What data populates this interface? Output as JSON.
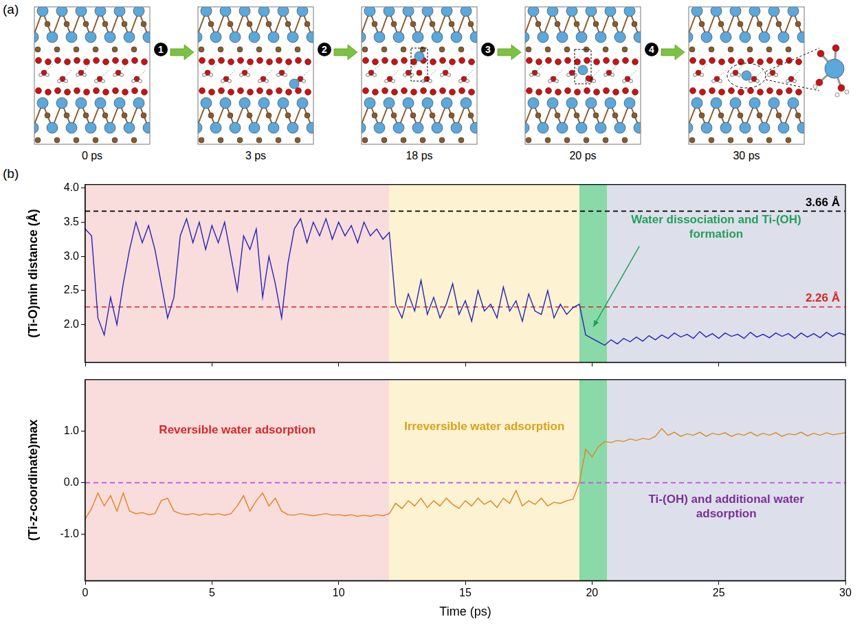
{
  "panel_a": {
    "label": "(a)",
    "steps": [
      "1",
      "2",
      "3",
      "4"
    ],
    "times": [
      "0 ps",
      "3 ps",
      "18 ps",
      "20 ps",
      "30 ps"
    ]
  },
  "panel_b": {
    "label": "(b)",
    "regions": [
      {
        "start": 0,
        "end": 12,
        "color": "#f9dcdc",
        "label": "Reversible water adsorption",
        "label_color": "#d62828"
      },
      {
        "start": 12,
        "end": 19.5,
        "color": "#fdf2d2",
        "label": "Irreversible water adsorption",
        "label_color": "#d9a21b"
      },
      {
        "start": 19.5,
        "end": 20.6,
        "color": "#8ad9a8",
        "label": "Water dissociation and Ti-(OH) formation",
        "label_color": "#22a05a"
      },
      {
        "start": 20.6,
        "end": 30,
        "color": "#dde0ea",
        "label": "Ti-(OH) and additional water adsorption",
        "label_color": "#7a2e9a"
      }
    ]
  },
  "chart_data": [
    {
      "type": "line",
      "ylabel": "(Ti-O)min distance (Å)",
      "color": "#2323b8",
      "grid": false,
      "tick_labels": "y",
      "xlim": [
        0,
        30
      ],
      "xticks": [
        0,
        5,
        10,
        15,
        20,
        25,
        30
      ],
      "ylim": [
        1.45,
        4.05
      ],
      "yticks": [
        {
          "value": 2,
          "label": "2.0"
        },
        2.5,
        {
          "value": 3,
          "label": "3.0"
        },
        3.5,
        {
          "value": 4,
          "label": "4.0"
        }
      ],
      "reference_lines": [
        {
          "value": 3.66,
          "label": "3.66 Å",
          "color": "#000000",
          "line_style": "dashed"
        },
        {
          "value": 2.26,
          "label": "2.26 Å",
          "color": "#d62828",
          "line_style": "dashed"
        }
      ],
      "x": [
        0,
        0.25,
        0.5,
        0.75,
        1,
        1.25,
        1.5,
        1.75,
        2,
        2.25,
        2.5,
        2.75,
        3,
        3.25,
        3.5,
        3.75,
        4,
        4.25,
        4.5,
        4.75,
        5,
        5.25,
        5.5,
        5.75,
        6,
        6.25,
        6.5,
        6.75,
        7,
        7.25,
        7.5,
        7.75,
        8,
        8.25,
        8.5,
        8.75,
        9,
        9.25,
        9.5,
        9.75,
        10,
        10.25,
        10.5,
        10.75,
        11,
        11.25,
        11.5,
        11.75,
        12,
        12.25,
        12.5,
        12.75,
        13,
        13.25,
        13.5,
        13.75,
        14,
        14.25,
        14.5,
        14.75,
        15,
        15.25,
        15.5,
        15.75,
        16,
        16.25,
        16.5,
        16.75,
        17,
        17.25,
        17.5,
        17.75,
        18,
        18.25,
        18.5,
        18.75,
        19,
        19.25,
        19.5,
        19.75,
        20,
        20.25,
        20.5,
        20.75,
        21,
        21.25,
        21.5,
        21.75,
        22,
        22.25,
        22.5,
        22.75,
        23,
        23.25,
        23.5,
        23.75,
        24,
        24.25,
        24.5,
        24.75,
        25,
        25.25,
        25.5,
        25.75,
        26,
        26.25,
        26.5,
        26.75,
        27,
        27.25,
        27.5,
        27.75,
        28,
        28.25,
        28.5,
        28.75,
        29,
        29.25,
        29.5,
        29.75,
        30
      ],
      "values": [
        3.4,
        3.3,
        2.1,
        1.85,
        2.4,
        2.0,
        2.6,
        3.1,
        3.5,
        3.2,
        3.45,
        3.1,
        2.6,
        2.1,
        2.4,
        3.3,
        3.55,
        3.2,
        3.5,
        3.1,
        3.45,
        3.2,
        3.5,
        3.0,
        2.5,
        3.3,
        3.1,
        3.4,
        2.4,
        3.0,
        2.6,
        2.1,
        2.9,
        3.4,
        3.55,
        3.2,
        3.5,
        3.3,
        3.55,
        3.25,
        3.5,
        3.3,
        3.45,
        3.2,
        3.5,
        3.3,
        3.4,
        3.25,
        3.35,
        2.3,
        2.1,
        2.45,
        2.2,
        2.65,
        2.15,
        2.4,
        2.1,
        2.3,
        2.6,
        2.15,
        2.35,
        2.05,
        2.5,
        2.2,
        2.3,
        2.1,
        2.55,
        2.2,
        2.35,
        2.05,
        2.45,
        2.2,
        2.15,
        2.5,
        2.1,
        2.3,
        2.15,
        2.25,
        2.3,
        1.85,
        1.8,
        1.75,
        1.7,
        1.78,
        1.72,
        1.8,
        1.75,
        1.82,
        1.76,
        1.84,
        1.78,
        1.85,
        1.8,
        1.88,
        1.82,
        1.86,
        1.8,
        1.9,
        1.82,
        1.87,
        1.8,
        1.88,
        1.83,
        1.86,
        1.8,
        1.89,
        1.82,
        1.86,
        1.81,
        1.88,
        1.83,
        1.87,
        1.8,
        1.88,
        1.82,
        1.87,
        1.81,
        1.89,
        1.83,
        1.88,
        1.85
      ]
    },
    {
      "type": "line",
      "ylabel": "(Ti-z-coordinate)max",
      "xlabel": "Time (ps)",
      "color": "#e0851f",
      "grid": false,
      "xlim": [
        0,
        30
      ],
      "xticks": [
        0,
        5,
        10,
        15,
        20,
        25,
        30
      ],
      "ylim": [
        -1.9,
        2.0
      ],
      "yticks": [
        {
          "value": -1,
          "label": "-1.0"
        },
        {
          "value": 0,
          "label": "0.0"
        },
        {
          "value": 1,
          "label": "1.0"
        }
      ],
      "reference_lines": [
        {
          "value": 0,
          "color": "#c04fe0",
          "line_style": "dashed"
        }
      ],
      "x": [
        0,
        0.25,
        0.5,
        0.75,
        1,
        1.25,
        1.5,
        1.75,
        2,
        2.25,
        2.5,
        2.75,
        3,
        3.25,
        3.5,
        3.75,
        4,
        4.25,
        4.5,
        4.75,
        5,
        5.25,
        5.5,
        5.75,
        6,
        6.25,
        6.5,
        6.75,
        7,
        7.25,
        7.5,
        7.75,
        8,
        8.25,
        8.5,
        8.75,
        9,
        9.25,
        9.5,
        9.75,
        10,
        10.25,
        10.5,
        10.75,
        11,
        11.25,
        11.5,
        11.75,
        12,
        12.25,
        12.5,
        12.75,
        13,
        13.25,
        13.5,
        13.75,
        14,
        14.25,
        14.5,
        14.75,
        15,
        15.25,
        15.5,
        15.75,
        16,
        16.25,
        16.5,
        16.75,
        17,
        17.25,
        17.5,
        17.75,
        18,
        18.25,
        18.5,
        18.75,
        19,
        19.25,
        19.5,
        19.75,
        20,
        20.25,
        20.5,
        20.75,
        21,
        21.25,
        21.5,
        21.75,
        22,
        22.25,
        22.5,
        22.75,
        23,
        23.25,
        23.5,
        23.75,
        24,
        24.25,
        24.5,
        24.75,
        25,
        25.25,
        25.5,
        25.75,
        26,
        26.25,
        26.5,
        26.75,
        27,
        27.25,
        27.5,
        27.75,
        28,
        28.25,
        28.5,
        28.75,
        29,
        29.25,
        29.5,
        29.75,
        30
      ],
      "values": [
        -0.7,
        -0.5,
        -0.2,
        -0.45,
        -0.25,
        -0.55,
        -0.2,
        -0.55,
        -0.6,
        -0.58,
        -0.62,
        -0.6,
        -0.35,
        -0.3,
        -0.55,
        -0.6,
        -0.62,
        -0.6,
        -0.63,
        -0.6,
        -0.62,
        -0.6,
        -0.63,
        -0.6,
        -0.45,
        -0.25,
        -0.55,
        -0.35,
        -0.2,
        -0.45,
        -0.3,
        -0.55,
        -0.62,
        -0.63,
        -0.6,
        -0.62,
        -0.64,
        -0.62,
        -0.6,
        -0.63,
        -0.62,
        -0.64,
        -0.62,
        -0.65,
        -0.63,
        -0.65,
        -0.62,
        -0.64,
        -0.6,
        -0.4,
        -0.5,
        -0.35,
        -0.45,
        -0.3,
        -0.48,
        -0.35,
        -0.45,
        -0.3,
        -0.42,
        -0.5,
        -0.35,
        -0.45,
        -0.3,
        -0.42,
        -0.35,
        -0.48,
        -0.3,
        -0.4,
        -0.15,
        -0.45,
        -0.35,
        -0.42,
        -0.3,
        -0.45,
        -0.38,
        -0.4,
        -0.35,
        -0.32,
        0.0,
        0.65,
        0.5,
        0.7,
        0.8,
        0.78,
        0.82,
        0.8,
        0.85,
        0.82,
        0.86,
        0.84,
        0.9,
        1.05,
        0.92,
        0.98,
        0.9,
        0.95,
        0.92,
        0.98,
        0.9,
        0.96,
        0.93,
        0.97,
        0.9,
        0.95,
        0.92,
        0.98,
        0.91,
        0.96,
        0.92,
        0.97,
        0.9,
        0.95,
        0.93,
        0.98,
        0.91,
        0.96,
        0.92,
        0.97,
        0.93,
        0.95,
        0.97
      ]
    }
  ]
}
